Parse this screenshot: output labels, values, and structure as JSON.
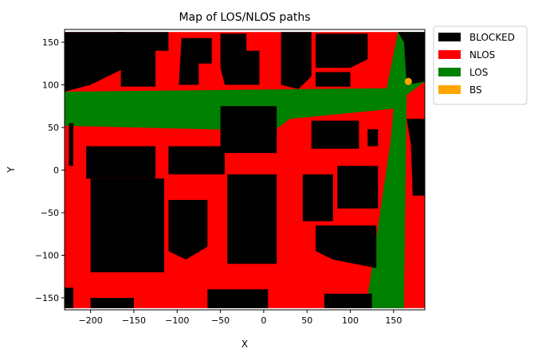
{
  "chart_data": {
    "type": "heatmap",
    "title": "Map of LOS/NLOS paths",
    "xlabel": "X",
    "ylabel": "Y",
    "xlim": [
      -230,
      186
    ],
    "ylim": [
      -164,
      165
    ],
    "xticks": [
      -200,
      -150,
      -100,
      -50,
      0,
      50,
      100,
      150
    ],
    "yticks": [
      -150,
      -100,
      -50,
      0,
      50,
      100,
      150
    ],
    "xtick_labels": [
      "−200",
      "−150",
      "−100",
      "−50",
      "0",
      "50",
      "100",
      "150"
    ],
    "ytick_labels": [
      "−150",
      "−100",
      "−50",
      "0",
      "50",
      "100",
      "150"
    ],
    "grid": false,
    "legend_position": "outside-top-right",
    "legend": [
      {
        "label": "BLOCKED",
        "color": "#000000"
      },
      {
        "label": "NLOS",
        "color": "#ff0000"
      },
      {
        "label": "LOS",
        "color": "#008000"
      },
      {
        "label": "BS",
        "color": "#ffa500"
      }
    ],
    "extent": {
      "x": [
        -230,
        186
      ],
      "y": [
        -162,
        162
      ]
    },
    "base_class": "NLOS",
    "los_regions": [
      {
        "points": [
          [
            -230,
            92
          ],
          [
            142,
            96
          ],
          [
            155,
            162
          ],
          [
            186,
            162
          ],
          [
            186,
            104
          ],
          [
            165,
            88
          ],
          [
            162,
            -162
          ],
          [
            118,
            -162
          ],
          [
            130,
            -80
          ],
          [
            146,
            30
          ],
          [
            150,
            72
          ],
          [
            30,
            60
          ],
          [
            12,
            46
          ],
          [
            -230,
            52
          ]
        ]
      }
    ],
    "blocked_regions": [
      {
        "points": [
          [
            -230,
            162
          ],
          [
            -160,
            162
          ],
          [
            -160,
            120
          ],
          [
            -200,
            100
          ],
          [
            -230,
            92
          ]
        ]
      },
      {
        "points": [
          [
            -170,
            162
          ],
          [
            -110,
            162
          ],
          [
            -110,
            140
          ],
          [
            -125,
            140
          ],
          [
            -125,
            98
          ],
          [
            -165,
            98
          ],
          [
            -165,
            130
          ],
          [
            -170,
            130
          ]
        ]
      },
      {
        "points": [
          [
            -95,
            155
          ],
          [
            -60,
            155
          ],
          [
            -60,
            125
          ],
          [
            -75,
            125
          ],
          [
            -75,
            100
          ],
          [
            -98,
            100
          ]
        ]
      },
      {
        "points": [
          [
            -50,
            160
          ],
          [
            -20,
            160
          ],
          [
            -20,
            140
          ],
          [
            -5,
            140
          ],
          [
            -5,
            100
          ],
          [
            -45,
            100
          ],
          [
            -50,
            120
          ]
        ]
      },
      {
        "points": [
          [
            20,
            162
          ],
          [
            55,
            162
          ],
          [
            55,
            110
          ],
          [
            40,
            95
          ],
          [
            20,
            100
          ]
        ]
      },
      {
        "points": [
          [
            60,
            160
          ],
          [
            120,
            160
          ],
          [
            120,
            130
          ],
          [
            100,
            120
          ],
          [
            60,
            120
          ]
        ]
      },
      {
        "points": [
          [
            60,
            115
          ],
          [
            100,
            115
          ],
          [
            100,
            98
          ],
          [
            60,
            98
          ]
        ]
      },
      {
        "points": [
          [
            155,
            162
          ],
          [
            186,
            162
          ],
          [
            186,
            104
          ],
          [
            165,
            100
          ],
          [
            162,
            150
          ]
        ]
      },
      {
        "points": [
          [
            -225,
            55
          ],
          [
            -220,
            55
          ],
          [
            -220,
            5
          ],
          [
            -225,
            5
          ]
        ]
      },
      {
        "points": [
          [
            -205,
            28
          ],
          [
            -125,
            28
          ],
          [
            -125,
            -10
          ],
          [
            -205,
            -10
          ]
        ]
      },
      {
        "points": [
          [
            -110,
            28
          ],
          [
            -45,
            28
          ],
          [
            -45,
            -5
          ],
          [
            -110,
            -5
          ]
        ]
      },
      {
        "points": [
          [
            -50,
            75
          ],
          [
            15,
            75
          ],
          [
            15,
            20
          ],
          [
            -50,
            20
          ]
        ]
      },
      {
        "points": [
          [
            55,
            58
          ],
          [
            110,
            58
          ],
          [
            110,
            25
          ],
          [
            55,
            25
          ]
        ]
      },
      {
        "points": [
          [
            120,
            48
          ],
          [
            132,
            48
          ],
          [
            132,
            28
          ],
          [
            120,
            28
          ]
        ]
      },
      {
        "points": [
          [
            165,
            60
          ],
          [
            186,
            60
          ],
          [
            186,
            -30
          ],
          [
            172,
            -30
          ],
          [
            170,
            30
          ]
        ]
      },
      {
        "points": [
          [
            -200,
            -10
          ],
          [
            -115,
            -10
          ],
          [
            -115,
            -120
          ],
          [
            -200,
            -120
          ]
        ]
      },
      {
        "points": [
          [
            -110,
            -35
          ],
          [
            -65,
            -35
          ],
          [
            -65,
            -90
          ],
          [
            -90,
            -105
          ],
          [
            -110,
            -95
          ]
        ]
      },
      {
        "points": [
          [
            -42,
            -5
          ],
          [
            15,
            -5
          ],
          [
            15,
            -110
          ],
          [
            -42,
            -110
          ]
        ]
      },
      {
        "points": [
          [
            45,
            -5
          ],
          [
            80,
            -5
          ],
          [
            80,
            -60
          ],
          [
            45,
            -60
          ]
        ]
      },
      {
        "points": [
          [
            85,
            5
          ],
          [
            132,
            5
          ],
          [
            132,
            -45
          ],
          [
            85,
            -45
          ]
        ]
      },
      {
        "points": [
          [
            60,
            -65
          ],
          [
            130,
            -65
          ],
          [
            130,
            -115
          ],
          [
            80,
            -105
          ],
          [
            60,
            -95
          ]
        ]
      },
      {
        "points": [
          [
            -230,
            -138
          ],
          [
            -220,
            -138
          ],
          [
            -220,
            -162
          ],
          [
            -230,
            -162
          ]
        ]
      },
      {
        "points": [
          [
            -200,
            -150
          ],
          [
            -150,
            -150
          ],
          [
            -150,
            -162
          ],
          [
            -200,
            -162
          ]
        ]
      },
      {
        "points": [
          [
            -65,
            -140
          ],
          [
            5,
            -140
          ],
          [
            5,
            -162
          ],
          [
            -65,
            -162
          ]
        ]
      },
      {
        "points": [
          [
            70,
            -145
          ],
          [
            125,
            -145
          ],
          [
            125,
            -162
          ],
          [
            70,
            -162
          ]
        ]
      }
    ],
    "bs_point": {
      "x": 167,
      "y": 104
    }
  }
}
